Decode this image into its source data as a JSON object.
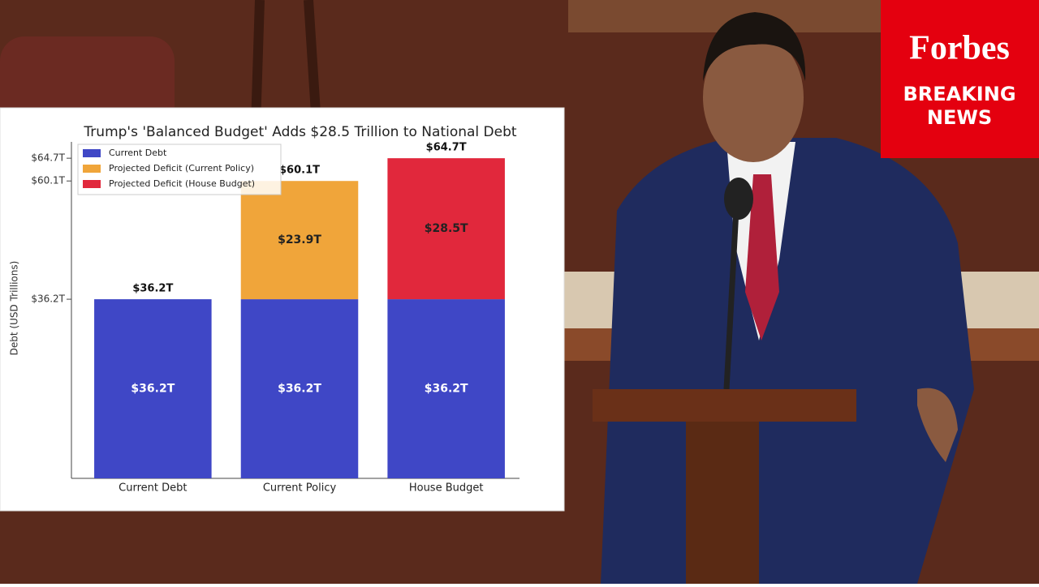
{
  "chart_data": {
    "type": "stacked_bar",
    "title": "Trump's 'Balanced Budget' Adds $28.5 Trillion to National Debt",
    "ylabel": "Debt (USD Trillions)",
    "categories": [
      "Current Debt",
      "Current Policy",
      "House Budget"
    ],
    "series": [
      {
        "name": "Current Debt",
        "color": "#3f47c6",
        "values": [
          36.2,
          36.2,
          36.2
        ],
        "value_labels": [
          "$36.2T",
          "$36.2T",
          "$36.2T"
        ]
      },
      {
        "name": "Projected Deficit (Current Policy)",
        "color": "#f0a53a",
        "values": [
          null,
          23.9,
          null
        ],
        "value_labels": [
          null,
          "$23.9T",
          null
        ]
      },
      {
        "name": "Projected Deficit (House Budget)",
        "color": "#e1283c",
        "values": [
          null,
          null,
          28.5
        ],
        "value_labels": [
          null,
          null,
          "$28.5T"
        ]
      }
    ],
    "totals": {
      "values": [
        36.2,
        60.1,
        64.7
      ],
      "value_labels": [
        "$36.2T",
        "$60.1T",
        "$64.7T"
      ]
    },
    "ylim": [
      0,
      68
    ],
    "yticks": [
      {
        "value": 36.2,
        "label": "$36.2T"
      },
      {
        "value": 60.1,
        "label": "$60.1T"
      },
      {
        "value": 64.7,
        "label": "$64.7T"
      }
    ],
    "legend": "upper left"
  },
  "badge": {
    "brand": "Forbes",
    "line1": "BREAKING",
    "line2": "NEWS"
  }
}
